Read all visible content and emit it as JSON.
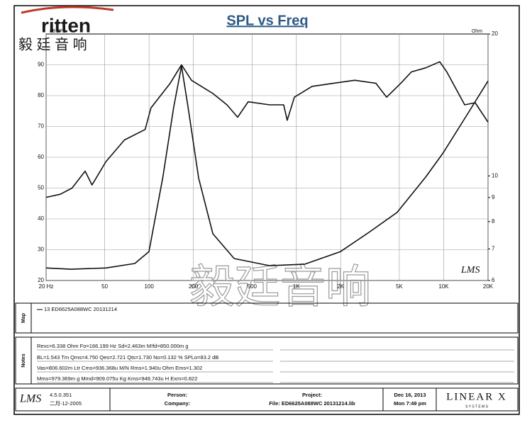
{
  "logo": {
    "brand": "ritten",
    "chinese": "毅 廷 音 响"
  },
  "watermark": "毅廷音响",
  "plot_label": "LMS",
  "chart_data": {
    "type": "line",
    "title": "SPL vs Freq",
    "ylabel": "dBSPL",
    "y2label": "Ohm",
    "xscale": "log",
    "xlim": [
      20,
      20000
    ],
    "xticks": [
      {
        "value": 20,
        "label": "20 Hz"
      },
      50,
      100,
      200,
      500,
      {
        "value": 1000,
        "label": "1K"
      },
      {
        "value": 2000,
        "label": "2K"
      },
      {
        "value": 5000,
        "label": "5K"
      },
      {
        "value": 10000,
        "label": "10K"
      },
      {
        "value": 20000,
        "label": "20K"
      }
    ],
    "ylim": [
      20,
      100
    ],
    "yticks": [
      20,
      30,
      40,
      50,
      60,
      70,
      80,
      90
    ],
    "y2scale": "log",
    "y2lim": [
      6,
      20
    ],
    "y2ticks": [
      6,
      7,
      8,
      9,
      10,
      20
    ],
    "grid": true,
    "series": [
      {
        "name": "13 ED6625A088WC  20131214",
        "color": "#111111",
        "x": [
          20,
          25,
          30,
          36.8,
          41,
          51,
          68,
          94,
          103,
          139,
          166,
          194,
          271,
          338,
          399,
          471,
          658,
          820,
          867,
          969,
          1279,
          1783,
          2489,
          3468,
          4096,
          5116,
          6042,
          7537,
          9399,
          10500,
          13880,
          16370,
          20000
        ],
        "values": [
          47,
          48,
          50,
          55.5,
          51,
          58.6,
          65.6,
          69,
          76,
          84,
          90,
          85,
          80.7,
          77,
          73,
          78,
          77,
          77,
          72,
          79.5,
          83,
          84,
          85,
          84,
          79.5,
          84,
          87.7,
          89,
          91,
          87.7,
          77,
          77.7,
          71.4
        ]
      },
      {
        "color": "#111111",
        "axis": "y2",
        "x": [
          20,
          29.5,
          51,
          80,
          99.8,
          124,
          147,
          166,
          184,
          217,
          271,
          378,
          658,
          1143,
          1992,
          3105,
          4832,
          7537,
          9940,
          14660,
          20000
        ],
        "values": [
          6.38,
          6.34,
          6.38,
          6.52,
          6.91,
          9.94,
          14.0,
          17.1,
          14.0,
          9.9,
          7.54,
          6.68,
          6.45,
          6.5,
          6.91,
          7.59,
          8.37,
          9.94,
          11.2,
          13.6,
          15.9
        ]
      }
    ]
  },
  "map_panel": {
    "label": "Map"
  },
  "notes_panel": {
    "label": "Notes",
    "lines": [
      "Revc=6.338 Ohm  Fo=166.199 Hz  Sd=2.463m M!fd=850.000m g",
      "BL=1.543 Tm  Qms=4.750  Qes=2.721  Qts=1.730  No=0.132 %  SPLo=83.2 dB",
      "Vas=806.602m Ltr  Cms=936.368u M/N  Rms=1.940u Ohm  Ems=1.302",
      "Mms=979.369m g  Mmd=909.075u Kg  Kms=948.743u H  Exm=0.822"
    ]
  },
  "footer": {
    "logo": "LMS",
    "version": "4.5.0.351",
    "date_built": "二月-12-2005",
    "person": "Person:",
    "company": "Company:",
    "project": "Project:",
    "file": "File: ED6625A088WC  20131214.lib",
    "date": "Dec 16, 2013",
    "time": "Mon  7:49 pm",
    "brand": "LINEAR X",
    "brand_sub": "S Y S T E M S"
  }
}
